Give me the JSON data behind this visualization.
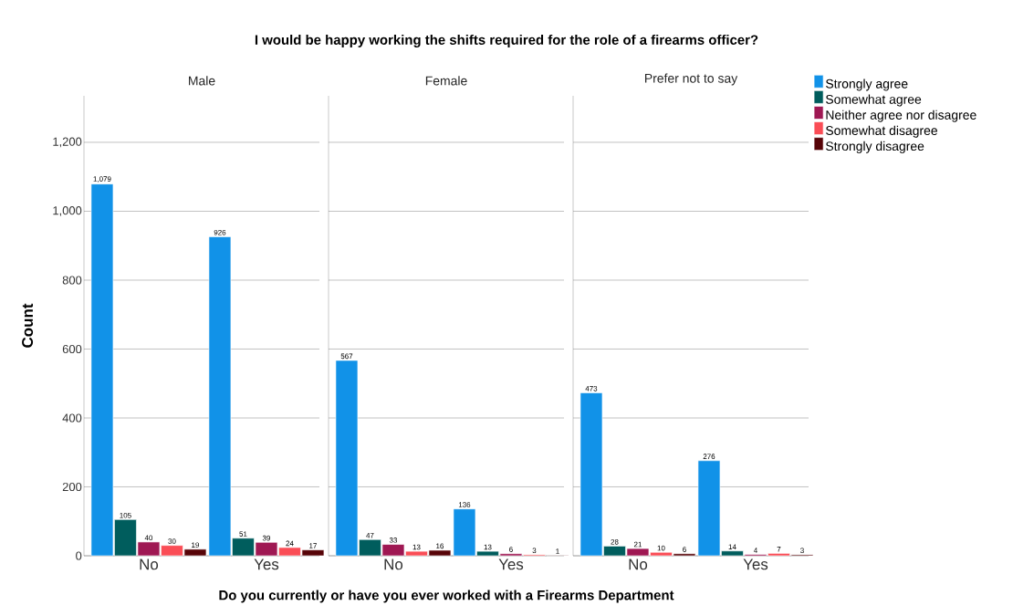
{
  "chart_data": [
    {
      "type": "bar",
      "title": "Male",
      "ylabel": "Count",
      "categories": [
        "No",
        "Yes"
      ],
      "ylim": [
        0,
        1335
      ],
      "yticks": [
        0,
        200,
        400,
        600,
        800,
        {
          "value": 1000,
          "label": "1,000"
        },
        {
          "value": 1200,
          "label": "1,200"
        }
      ],
      "grid": "y",
      "series": [
        {
          "color": "#1192e8",
          "values": [
            1079,
            926
          ],
          "value_labels": [
            "1,079",
            "926"
          ]
        },
        {
          "color": "#005d5d",
          "values": [
            105,
            51
          ],
          "value_labels": [
            "105",
            "51"
          ]
        },
        {
          "color": "#9f1853",
          "values": [
            40,
            39
          ],
          "value_labels": [
            "40",
            "39"
          ]
        },
        {
          "color": "#fa4d56",
          "values": [
            30,
            24
          ],
          "value_labels": [
            "30",
            "24"
          ]
        },
        {
          "color": "#570408",
          "values": [
            19,
            17
          ],
          "value_labels": [
            "19",
            "17"
          ]
        }
      ]
    },
    {
      "type": "bar",
      "title": "Female",
      "xlabel": "Do you currently or have you ever worked with a Firearms Department",
      "annotations": [
        "I would be happy working the shifts required for the role of a firearms officer?"
      ],
      "categories": [
        "No",
        "Yes"
      ],
      "ylim": [
        0,
        1335
      ],
      "yticks": [
        0,
        200,
        400,
        600,
        800,
        1000,
        1200
      ],
      "grid": "y",
      "tick_labels": "x",
      "series": [
        {
          "color": "#1192e8",
          "values": [
            567,
            136
          ],
          "value_labels": [
            "567",
            "136"
          ]
        },
        {
          "color": "#005d5d",
          "values": [
            47,
            13
          ],
          "value_labels": [
            "47",
            "13"
          ]
        },
        {
          "color": "#9f1853",
          "values": [
            33,
            6
          ],
          "value_labels": [
            "33",
            "6"
          ]
        },
        {
          "color": "#fa4d56",
          "values": [
            13,
            3
          ],
          "value_labels": [
            "13",
            "3"
          ]
        },
        {
          "color": "#570408",
          "values": [
            16,
            1
          ],
          "value_labels": [
            "16",
            "1"
          ]
        }
      ]
    },
    {
      "type": "bar",
      "title": "Prefer not to say",
      "categories": [
        "No",
        "Yes"
      ],
      "ylim": [
        0,
        1335
      ],
      "yticks": [
        0,
        200,
        400,
        600,
        800,
        1000,
        1200
      ],
      "grid": "y",
      "tick_labels": "x",
      "legend": "top right",
      "series": [
        {
          "name": "Strongly agree",
          "color": "#1192e8",
          "values": [
            473,
            276
          ],
          "value_labels": [
            "473",
            "276"
          ]
        },
        {
          "name": "Somewhat agree",
          "color": "#005d5d",
          "values": [
            28,
            14
          ],
          "value_labels": [
            "28",
            "14"
          ]
        },
        {
          "name": "Neither agree nor disagree",
          "color": "#9f1853",
          "values": [
            21,
            4
          ],
          "value_labels": [
            "21",
            "4"
          ]
        },
        {
          "name": "Somewhat disagree",
          "color": "#fa4d56",
          "values": [
            10,
            7
          ],
          "value_labels": [
            "10",
            "7"
          ]
        },
        {
          "name": "Strongly disagree",
          "color": "#570408",
          "values": [
            6,
            3
          ],
          "value_labels": [
            "6",
            "3"
          ]
        }
      ]
    }
  ]
}
